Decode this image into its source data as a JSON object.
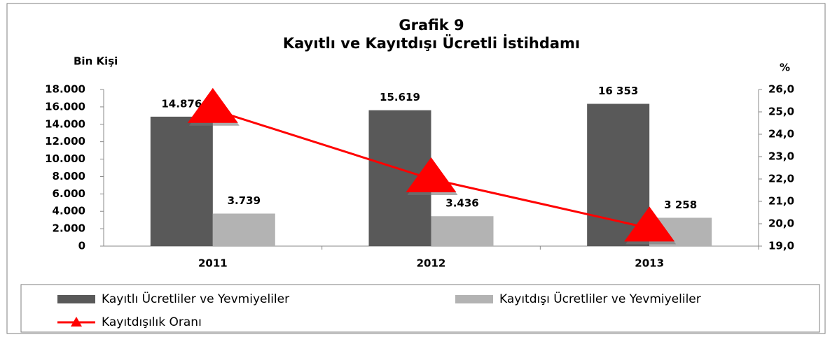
{
  "chart_data": {
    "type": "bar_line",
    "title": "Grafik 9",
    "subtitle": "Kayıtlı ve Kayıtdışı Ücretli İstihdamı",
    "ylabel": "Bin Kişi",
    "y2label": "%",
    "categories": [
      "2011",
      "2012",
      "2013"
    ],
    "series": [
      {
        "name": "Kayıtlı Ücretliler ve Yevmiyeliler",
        "color": "#595959",
        "type": "bar",
        "values": [
          14876,
          15619,
          16353
        ],
        "value_labels": [
          "14.876",
          "15.619",
          "16 353"
        ]
      },
      {
        "name": "Kayıtdışı Ücretliler ve Yevmiyeliler",
        "color": "#b3b3b3",
        "type": "bar",
        "values": [
          3739,
          3436,
          3258
        ],
        "value_labels": [
          "3.739",
          "3.436",
          "3 258"
        ]
      },
      {
        "name": "Kayıtdışılık Oranı",
        "color": "#ff0000",
        "type": "line",
        "marker": "triangle",
        "axis": "y2",
        "values": [
          25.1,
          22.0,
          19.8
        ]
      }
    ],
    "ylim": [
      0,
      18000
    ],
    "yticks": [
      0,
      {
        "value": 2000,
        "label": "2.000"
      },
      {
        "value": 4000,
        "label": "4.000"
      },
      {
        "value": 6000,
        "label": "6.000"
      },
      {
        "value": 8000,
        "label": "8.000"
      },
      {
        "value": 10000,
        "label": "10.000"
      },
      {
        "value": 12000,
        "label": "12.000"
      },
      {
        "value": 14000,
        "label": "14.000"
      },
      {
        "value": 16000,
        "label": "16.000"
      },
      {
        "value": 18000,
        "label": "18.000"
      }
    ],
    "y2lim": [
      19,
      26
    ],
    "y2ticks": [
      {
        "value": 19,
        "label": "19,0"
      },
      {
        "value": 20,
        "label": "20,0"
      },
      {
        "value": 21,
        "label": "21,0"
      },
      {
        "value": 22,
        "label": "22,0"
      },
      {
        "value": 23,
        "label": "23,0"
      },
      {
        "value": 24,
        "label": "24,0"
      },
      {
        "value": 25,
        "label": "25,0"
      },
      {
        "value": 26,
        "label": "26,0"
      }
    ],
    "grid": false,
    "legend": "bottom"
  }
}
